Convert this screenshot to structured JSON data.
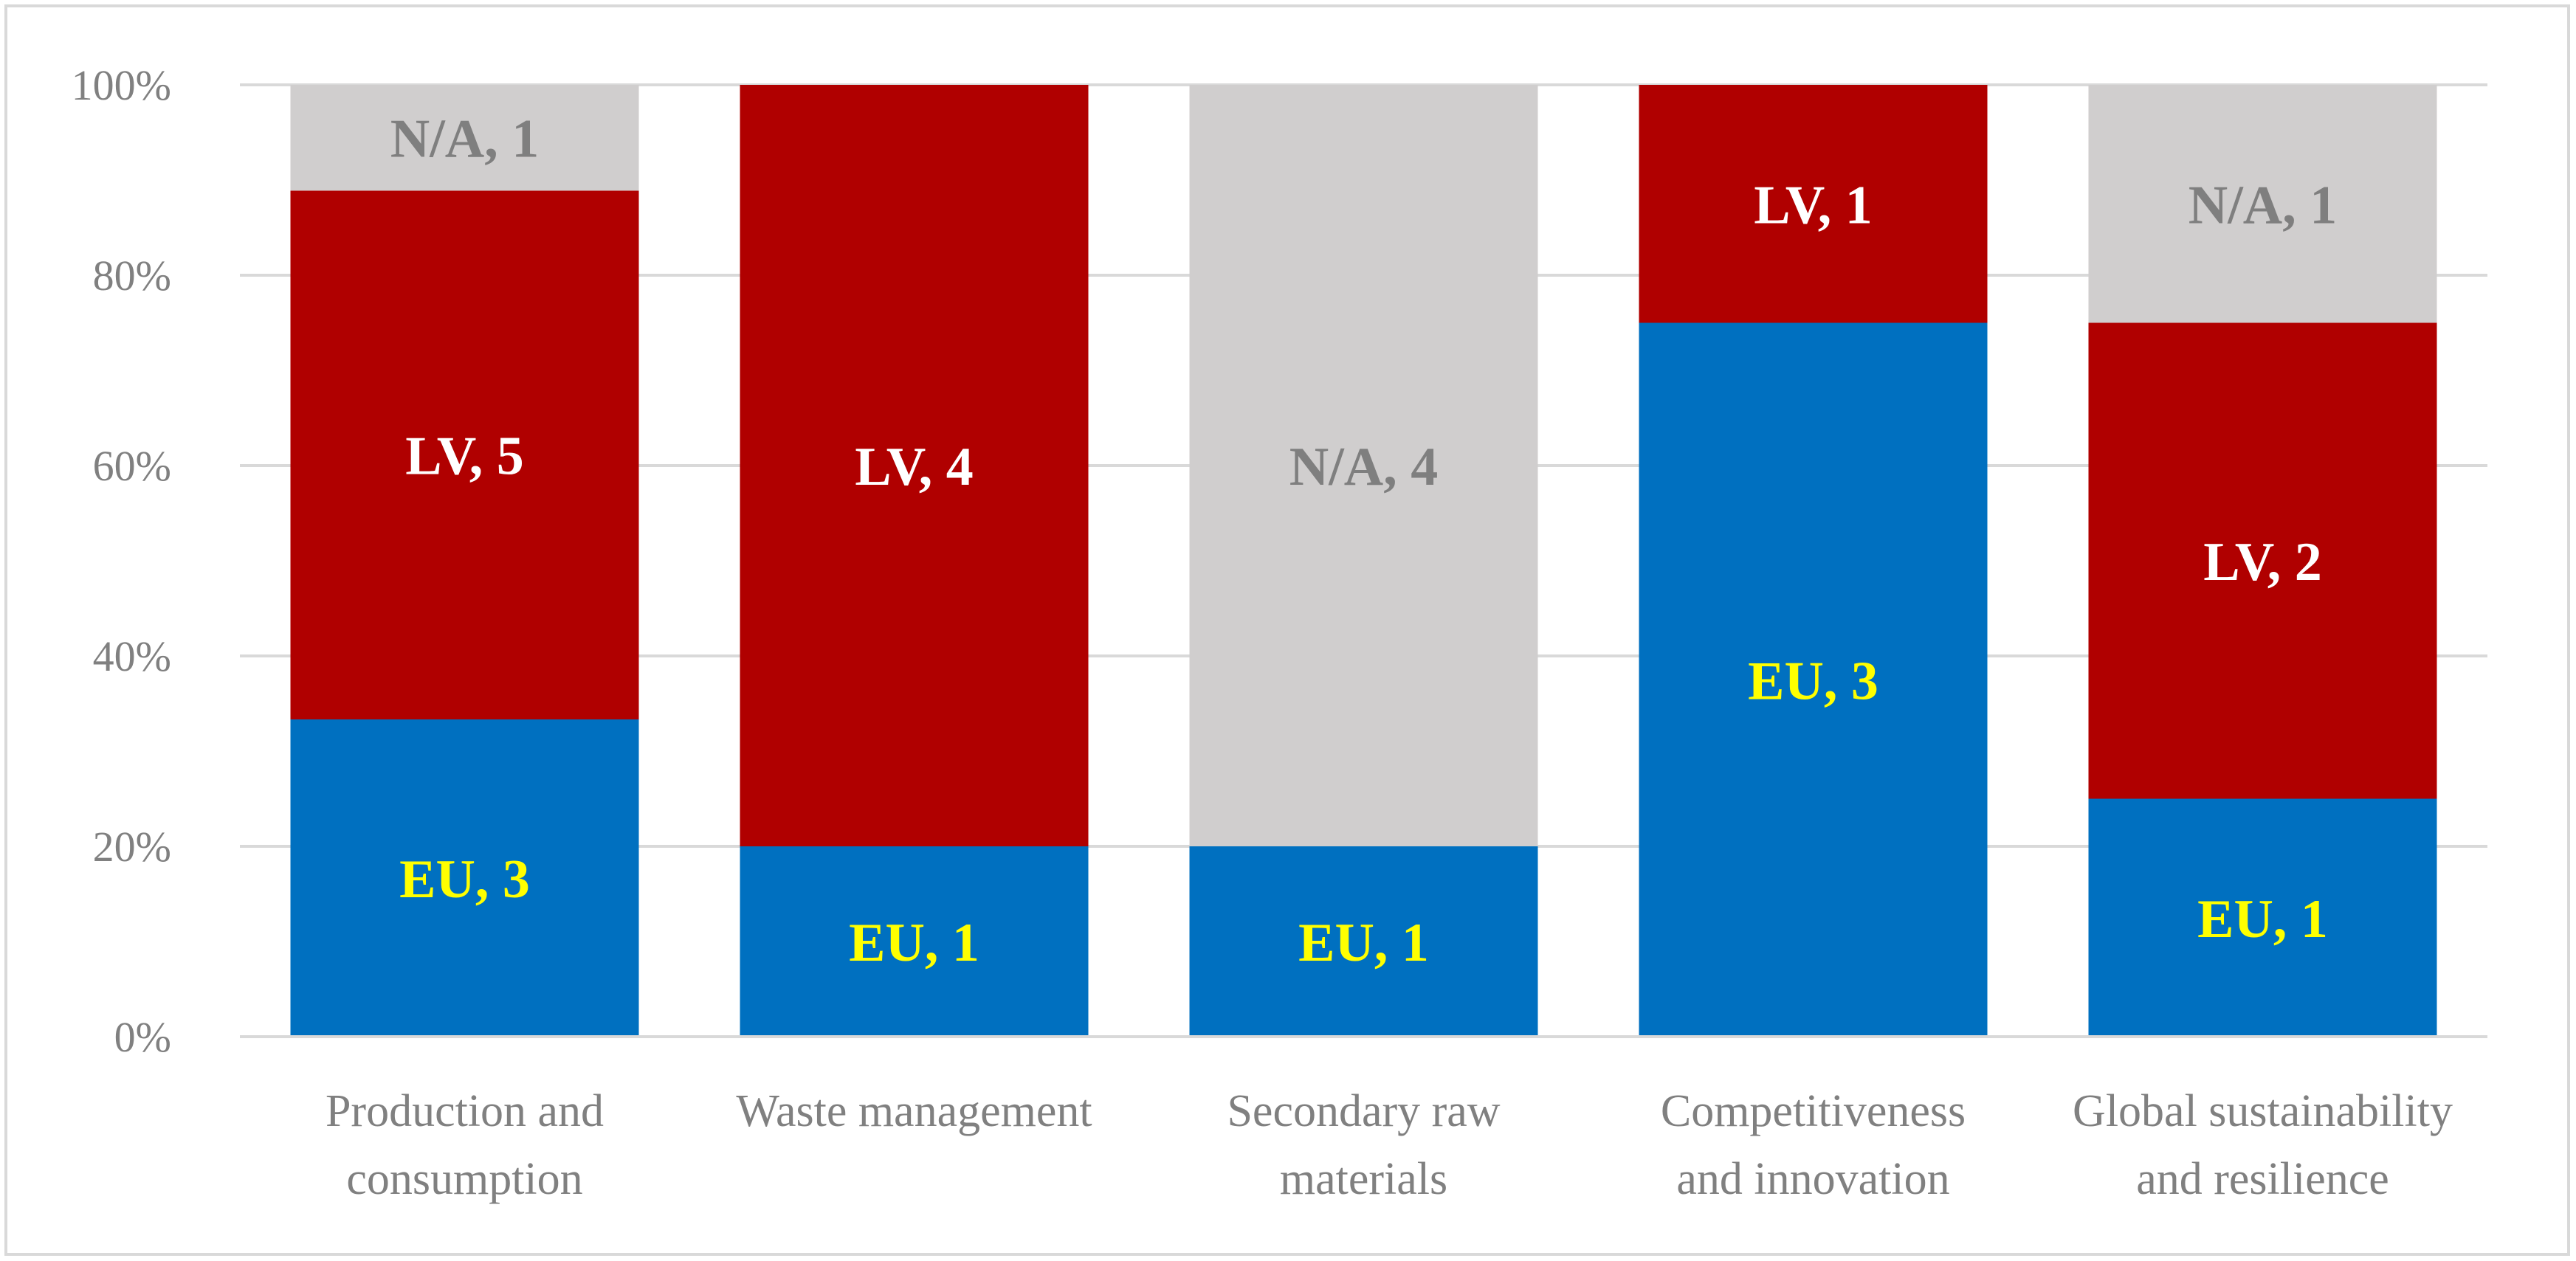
{
  "chart_data": {
    "type": "bar",
    "stacked": true,
    "percent_stacked": true,
    "title": "",
    "xlabel": "",
    "ylabel": "",
    "ylim": [
      0,
      100
    ],
    "yticks": [
      "0%",
      "20%",
      "40%",
      "60%",
      "80%",
      "100%"
    ],
    "grid": true,
    "legend": "none",
    "categories": [
      [
        "Production and",
        "consumption"
      ],
      [
        "Waste management"
      ],
      [
        "Secondary raw",
        "materials"
      ],
      [
        "Competitiveness",
        "and innovation"
      ],
      [
        "Global sustainability",
        "and resilience"
      ]
    ],
    "series": [
      {
        "name": "EU",
        "color": "#0070c0",
        "label_color": "#ffff00",
        "values": [
          3,
          1,
          1,
          3,
          1
        ],
        "labels": [
          "EU, 3",
          "EU, 1",
          "EU, 1",
          "EU, 3",
          "EU, 1"
        ]
      },
      {
        "name": "LV",
        "color": "#b00000",
        "label_color": "#ffffff",
        "values": [
          5,
          4,
          0,
          1,
          2
        ],
        "labels": [
          "LV, 5",
          "LV, 4",
          "",
          "LV, 1",
          "LV, 2"
        ]
      },
      {
        "name": "N/A",
        "color": "#d0cece",
        "label_color": "#7f7f7f",
        "values": [
          1,
          0,
          4,
          0,
          1
        ],
        "labels": [
          "N/A, 1",
          "",
          "N/A, 4",
          "",
          "N/A, 1"
        ]
      }
    ],
    "colors": {
      "grid": "#d9d9d9",
      "axis": "#d9d9d9",
      "text": "#808080"
    }
  }
}
